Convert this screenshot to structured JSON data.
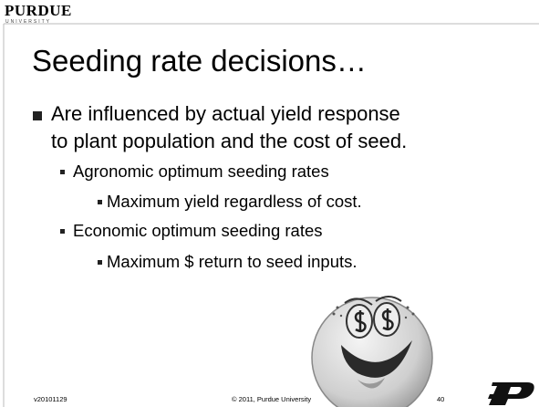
{
  "header": {
    "logo": "PURDUE",
    "logo_subtitle": "UNIVERSITY"
  },
  "title": "Seeding rate decisions…",
  "bullets": [
    {
      "lines": [
        "Are influenced by actual yield response",
        "to plant population and the cost of seed."
      ],
      "children": [
        {
          "text": "Agronomic optimum seeding rates",
          "children": [
            {
              "text": "Maximum yield regardless of cost."
            }
          ]
        },
        {
          "text": "Economic optimum seeding rates",
          "children": [
            {
              "text": "Maximum $ return to seed inputs."
            }
          ]
        }
      ]
    }
  ],
  "footer": {
    "version": "v20101129",
    "copyright": "© 2011, Purdue University",
    "page": 40
  }
}
